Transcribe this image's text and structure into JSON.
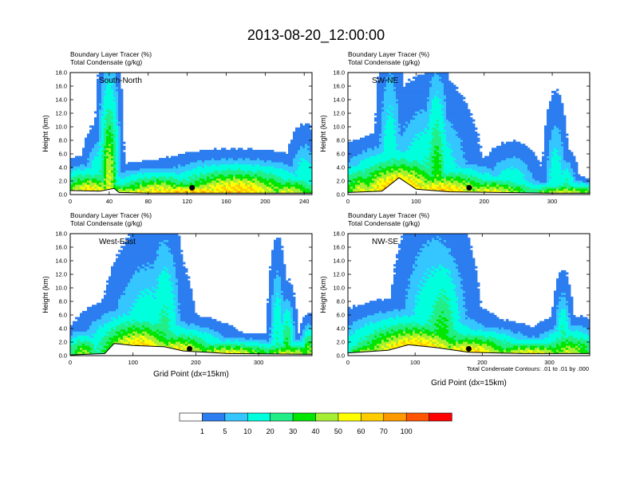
{
  "figure": {
    "title": "2013-08-20_12:00:00",
    "contour_note": "Total Condensate Contours: .01 to .01 by .000"
  },
  "colorbar": {
    "colors": [
      "#ffffff",
      "#2c7df0",
      "#35c6ff",
      "#00ffdd",
      "#22ee88",
      "#00e600",
      "#a6ee34",
      "#ffff00",
      "#ffcc00",
      "#ff9900",
      "#ff5500",
      "#ff0000"
    ],
    "labels": [
      "1",
      "5",
      "10",
      "20",
      "30",
      "40",
      "50",
      "60",
      "70",
      "100"
    ]
  },
  "chart_data": [
    {
      "type": "heatmap",
      "name": "south-north",
      "title_line1": "Boundary Layer Tracer",
      "unit1": "(%)",
      "title_line2": "Total Condensate",
      "unit2": "(g/kg)",
      "panel_label": "South-North",
      "ylabel": "Height (km)",
      "xlabel": "",
      "xlim": [
        0,
        248
      ],
      "ylim": [
        0,
        18
      ],
      "xticks": [
        "0",
        "40",
        "80",
        "120",
        "160",
        "200",
        "240"
      ],
      "yticks": [
        "0.0",
        "2.0",
        "4.0",
        "6.0",
        "8.0",
        "10.0",
        "12.0",
        "14.0",
        "16.0",
        "18.0"
      ],
      "marker": {
        "x": 125,
        "y": 1.0
      },
      "blobs": [
        {
          "x": 125,
          "w": 125,
          "h": 1.6,
          "v": 78
        },
        {
          "x": 20,
          "w": 30,
          "h": 2.8,
          "v": 70
        },
        {
          "x": 90,
          "w": 40,
          "h": 2.5,
          "v": 68
        },
        {
          "x": 170,
          "w": 60,
          "h": 3.3,
          "v": 75
        },
        {
          "x": 225,
          "w": 30,
          "h": 2.2,
          "v": 58
        },
        {
          "x": 240,
          "w": 12,
          "h": 6.0,
          "v": 24
        },
        {
          "x": 40,
          "w": 8,
          "h": 13.0,
          "v": 58
        },
        {
          "x": 30,
          "w": 12,
          "h": 6.0,
          "v": 30
        },
        {
          "x": 140,
          "w": 20,
          "h": 2.0,
          "v": 50
        }
      ],
      "terrain": [
        [
          0,
          0.6
        ],
        [
          30,
          0.5
        ],
        [
          45,
          0.9
        ],
        [
          50,
          0.3
        ],
        [
          80,
          0.2
        ],
        [
          248,
          0.2
        ]
      ]
    },
    {
      "type": "heatmap",
      "name": "sw-ne",
      "title_line1": "Boundary Layer Tracer",
      "unit1": "(%)",
      "title_line2": "Total Condensate",
      "unit2": "(g/kg)",
      "panel_label": "SW-NE",
      "ylabel": "Height (km)",
      "xlabel": "",
      "xlim": [
        0,
        355
      ],
      "ylim": [
        0,
        18
      ],
      "xticks": [
        "0",
        "100",
        "200",
        "300"
      ],
      "yticks": [
        "0.0",
        "2.0",
        "4.0",
        "6.0",
        "8.0",
        "10.0",
        "12.0",
        "14.0",
        "16.0",
        "18.0"
      ],
      "marker": {
        "x": 178,
        "y": 1.0
      },
      "blobs": [
        {
          "x": 75,
          "w": 60,
          "h": 4.5,
          "v": 85
        },
        {
          "x": 140,
          "w": 70,
          "h": 3.0,
          "v": 75
        },
        {
          "x": 210,
          "w": 60,
          "h": 2.0,
          "v": 65
        },
        {
          "x": 320,
          "w": 60,
          "h": 1.3,
          "v": 62
        },
        {
          "x": 20,
          "w": 30,
          "h": 3.5,
          "v": 58
        },
        {
          "x": 62,
          "w": 14,
          "h": 15.0,
          "v": 22
        },
        {
          "x": 120,
          "w": 45,
          "h": 10.0,
          "v": 28
        },
        {
          "x": 130,
          "w": 14,
          "h": 12.5,
          "v": 45
        },
        {
          "x": 240,
          "w": 30,
          "h": 4.5,
          "v": 24
        },
        {
          "x": 305,
          "w": 12,
          "h": 9.0,
          "v": 20
        },
        {
          "x": 320,
          "w": 12,
          "h": 3.8,
          "v": 30
        }
      ],
      "terrain": [
        [
          0,
          0.3
        ],
        [
          50,
          0.5
        ],
        [
          75,
          2.5
        ],
        [
          100,
          0.8
        ],
        [
          150,
          0.4
        ],
        [
          300,
          0.2
        ],
        [
          355,
          0.2
        ]
      ]
    },
    {
      "type": "heatmap",
      "name": "west-east",
      "title_line1": "Boundary Layer Tracer",
      "unit1": "(%)",
      "title_line2": "Total Condensate",
      "unit2": "(g/kg)",
      "panel_label": "West-East",
      "ylabel": "Height (km)",
      "xlabel": "Grid Point (dx=15km)",
      "xlim": [
        0,
        385
      ],
      "ylim": [
        0,
        18
      ],
      "xticks": [
        "0",
        "100",
        "200",
        "300"
      ],
      "yticks": [
        "0.0",
        "2.0",
        "4.0",
        "6.0",
        "8.0",
        "10.0",
        "12.0",
        "14.0",
        "16.0",
        "18.0"
      ],
      "marker": {
        "x": 190,
        "y": 1.0
      },
      "blobs": [
        {
          "x": 110,
          "w": 60,
          "h": 4.5,
          "v": 80
        },
        {
          "x": 170,
          "w": 60,
          "h": 3.0,
          "v": 70
        },
        {
          "x": 250,
          "w": 80,
          "h": 1.7,
          "v": 65
        },
        {
          "x": 350,
          "w": 50,
          "h": 1.6,
          "v": 60
        },
        {
          "x": 20,
          "w": 25,
          "h": 2.5,
          "v": 50
        },
        {
          "x": 125,
          "w": 45,
          "h": 11.0,
          "v": 24
        },
        {
          "x": 150,
          "w": 20,
          "h": 13.0,
          "v": 30
        },
        {
          "x": 85,
          "w": 15,
          "h": 8.0,
          "v": 20
        },
        {
          "x": 330,
          "w": 10,
          "h": 10.0,
          "v": 24
        },
        {
          "x": 345,
          "w": 10,
          "h": 6.0,
          "v": 40
        },
        {
          "x": 380,
          "w": 10,
          "h": 3.2,
          "v": 50
        }
      ],
      "terrain": [
        [
          0,
          0.1
        ],
        [
          55,
          0.3
        ],
        [
          70,
          1.8
        ],
        [
          100,
          1.5
        ],
        [
          150,
          1.3
        ],
        [
          180,
          0.7
        ],
        [
          250,
          0.3
        ],
        [
          385,
          0.2
        ]
      ]
    },
    {
      "type": "heatmap",
      "name": "nw-se",
      "title_line1": "Boundary Layer Tracer",
      "unit1": "(%)",
      "title_line2": "Total Condensate",
      "unit2": "(g/kg)",
      "panel_label": "NW-SE",
      "ylabel": "Height (km)",
      "xlabel": "Grid Point (dx=15km)",
      "xlim": [
        0,
        360
      ],
      "ylim": [
        0,
        18
      ],
      "xticks": [
        "0",
        "100",
        "200",
        "300"
      ],
      "yticks": [
        "0.0",
        "2.0",
        "4.0",
        "6.0",
        "8.0",
        "10.0",
        "12.0",
        "14.0",
        "16.0",
        "18.0"
      ],
      "marker": {
        "x": 180,
        "y": 1.0
      },
      "blobs": [
        {
          "x": 100,
          "w": 80,
          "h": 4.2,
          "v": 82
        },
        {
          "x": 180,
          "w": 70,
          "h": 2.8,
          "v": 72
        },
        {
          "x": 270,
          "w": 70,
          "h": 1.8,
          "v": 65
        },
        {
          "x": 330,
          "w": 40,
          "h": 3.0,
          "v": 55
        },
        {
          "x": 30,
          "w": 30,
          "h": 2.3,
          "v": 55
        },
        {
          "x": 130,
          "w": 40,
          "h": 13.8,
          "v": 26
        },
        {
          "x": 140,
          "w": 25,
          "h": 11.5,
          "v": 42
        },
        {
          "x": 320,
          "w": 10,
          "h": 7.0,
          "v": 30
        }
      ],
      "terrain": [
        [
          0,
          0.4
        ],
        [
          60,
          0.8
        ],
        [
          90,
          1.6
        ],
        [
          130,
          1.2
        ],
        [
          180,
          0.5
        ],
        [
          260,
          0.3
        ],
        [
          360,
          0.3
        ]
      ]
    }
  ]
}
